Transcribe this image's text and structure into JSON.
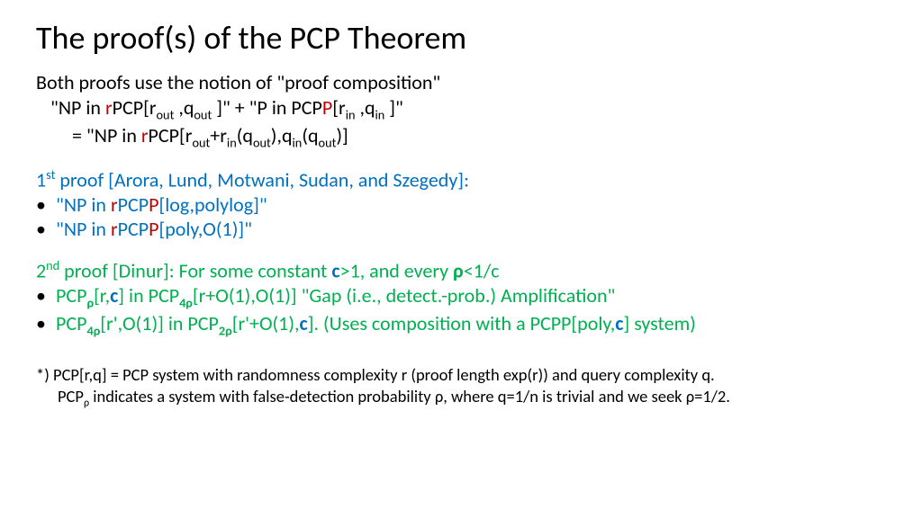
{
  "title": "The proof(s) of the PCP Theorem",
  "intro": {
    "l1": "Both proofs use the notion of \"proof composition\"",
    "l2a": "\"NP in ",
    "l2b": "r",
    "l2c": "PCP[r",
    "l2d": "out",
    "l2e": " ,q",
    "l2f": "out",
    "l2g": " ]\" + \"P in PCP",
    "l2h": "P",
    "l2i": "[r",
    "l2j": "in",
    "l2k": " ,q",
    "l2l": "in",
    "l2m": " ]\"",
    "l3a": "= \"NP in ",
    "l3b": "r",
    "l3c": "PCP[r",
    "l3d": "out",
    "l3e": "+r",
    "l3f": "in",
    "l3g": "(q",
    "l3h": "out",
    "l3i": "),q",
    "l3j": "in",
    "l3k": "(q",
    "l3l": "out",
    "l3m": ")]"
  },
  "p1": {
    "head_a": "1",
    "head_b": "st",
    "head_c": " proof ",
    "head_d": "[Arora, Lund, Motwani, Sudan, and Szegedy]",
    "head_e": ":",
    "b1a": "\"NP in ",
    "b1b": "r",
    "b1c": "PCP",
    "b1d": "P",
    "b1e": "[log,polylog]\"",
    "b2a": "\"NP in ",
    "b2b": "r",
    "b2c": "PCP",
    "b2d": "P",
    "b2e": "[poly,O(1)]\""
  },
  "p2": {
    "head_a": "2",
    "head_b": "nd",
    "head_c": " proof [Dinur]: For some constant ",
    "head_d": "c",
    "head_e": ">1, and every ",
    "head_f": "ρ",
    "head_g": "<1/c",
    "b1a": "PCP",
    "b1b": "ρ",
    "b1c": "[r,",
    "b1d": "c",
    "b1e": "] in PCP",
    "b1f": "4ρ",
    "b1g": "[r+O(1),O(1)]      \"Gap (i.e., detect.-prob.) Amplification\"",
    "b2a": "PCP",
    "b2b": "4ρ",
    "b2c": "[r',O(1)] in PCP",
    "b2d": "2ρ",
    "b2e": "[r'+O(1),",
    "b2f": "c",
    "b2g": "].   (Uses composition with a PCPP[poly,",
    "b2h": "c",
    "b2i": "] system)"
  },
  "foot": {
    "l1": "*) PCP[r,q] = PCP system with randomness complexity r (proof length exp(r)) and query complexity q.",
    "l2a": "PCP",
    "l2b": "ρ",
    "l2c": "  indicates a system with false-detection probability ρ, where q=1/n is trivial and we seek ρ=1/2."
  },
  "colors": {
    "red": "#c00000",
    "blue": "#0070c0",
    "green": "#00b050",
    "black": "#000000",
    "bg": "#ffffff"
  }
}
